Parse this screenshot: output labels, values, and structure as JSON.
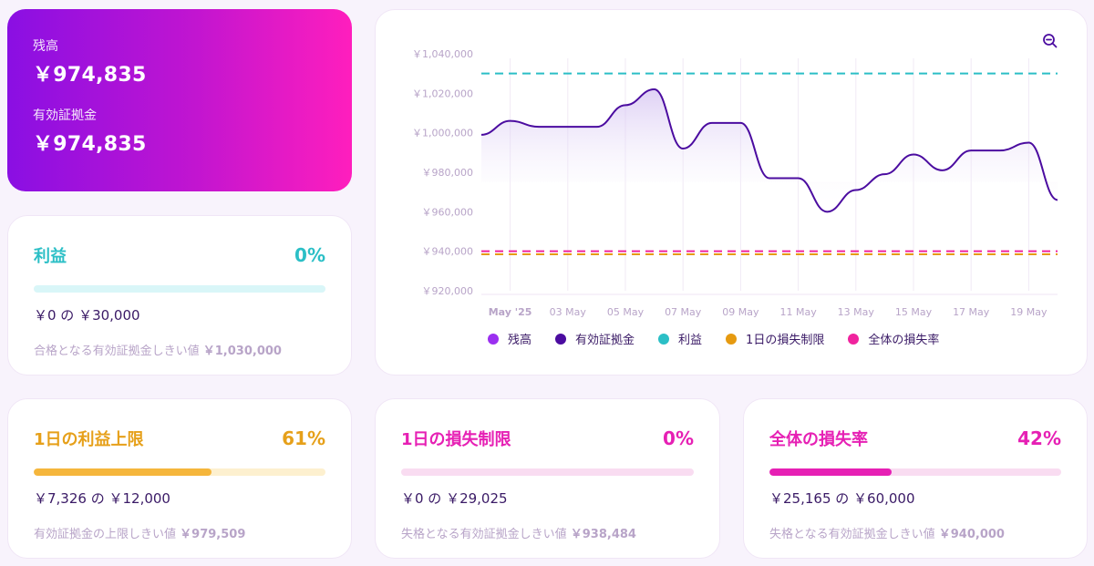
{
  "balance": {
    "balance_label": "残高",
    "balance_value": "￥974,835",
    "equity_label": "有効証拠金",
    "equity_value": "￥974,835"
  },
  "profit": {
    "title": "利益",
    "percent": "0%",
    "progress": 0,
    "amount": "￥0 の ￥30,000",
    "note_label": "合格となる有効証拠金しきい値",
    "note_value": "￥1,030,000",
    "color": "#2bbfc6",
    "track_color": "#d9f6f8"
  },
  "daily_profit_cap": {
    "title": "1日の利益上限",
    "percent": "61%",
    "progress": 0.61,
    "amount": "￥7,326 の ￥12,000",
    "note_label": "有効証拠金の上限しきい値",
    "note_value": "￥979,509",
    "color": "#e6a01a",
    "track_color": "#fdf0cf"
  },
  "daily_loss_limit": {
    "title": "1日の損失制限",
    "percent": "0%",
    "progress": 0,
    "amount": "￥0 の ￥29,025",
    "note_label": "失格となる有効証拠金しきい値",
    "note_value": "￥938,484",
    "color": "#e620b4",
    "track_color": "#f9dcf1"
  },
  "overall_loss": {
    "title": "全体の損失率",
    "percent": "42%",
    "progress": 0.42,
    "amount": "￥25,165 の ￥60,000",
    "note_label": "失格となる有効証拠金しきい値",
    "note_value": "￥940,000",
    "color": "#e620b4",
    "track_color": "#f9dcf1"
  },
  "chart": {
    "zoom_icon": "zoom-out-icon",
    "legend": [
      {
        "label": "残高",
        "color": "#9b2ff0"
      },
      {
        "label": "有効証拠金",
        "color": "#4b0ca0"
      },
      {
        "label": "利益",
        "color": "#2bbfc6"
      },
      {
        "label": "1日の損失制限",
        "color": "#e69a10"
      },
      {
        "label": "全体の損失率",
        "color": "#f0239e"
      }
    ]
  },
  "chart_data": {
    "type": "line",
    "ylim": [
      920000,
      1040000
    ],
    "y_ticks": [
      920000,
      940000,
      960000,
      980000,
      1000000,
      1020000,
      1040000
    ],
    "y_tick_labels": [
      "￥920,000",
      "￥940,000",
      "￥960,000",
      "￥980,000",
      "￥1,000,000",
      "￥1,020,000",
      "￥1,040,000"
    ],
    "x_tick_labels": [
      "May '25",
      "03 May",
      "05 May",
      "07 May",
      "09 May",
      "11 May",
      "13 May",
      "15 May",
      "17 May",
      "19 May"
    ],
    "x_range": [
      "2025-04-30",
      "2025-05-20"
    ],
    "grid": true,
    "series": [
      {
        "name": "有効証拠金",
        "color": "#4b0ca0",
        "x": [
          "2025-04-30",
          "2025-05-01",
          "2025-05-02",
          "2025-05-03",
          "2025-05-04",
          "2025-05-05",
          "2025-05-06",
          "2025-05-07",
          "2025-05-08",
          "2025-05-09",
          "2025-05-10",
          "2025-05-11",
          "2025-05-12",
          "2025-05-13",
          "2025-05-14",
          "2025-05-15",
          "2025-05-16",
          "2025-05-17",
          "2025-05-18",
          "2025-05-19",
          "2025-05-20"
        ],
        "values": [
          999000,
          1006000,
          1003000,
          1003000,
          1003000,
          1014000,
          1022000,
          992000,
          1005000,
          1005000,
          977000,
          977000,
          960000,
          971000,
          979000,
          989000,
          981000,
          991000,
          991000,
          995000,
          966000
        ]
      },
      {
        "name": "利益",
        "color": "#2bbfc6",
        "dashed": true,
        "constant": 1030000
      },
      {
        "name": "1日の損失制限",
        "color": "#e69a10",
        "dashed": true,
        "constant": 938484
      },
      {
        "name": "全体の損失率",
        "color": "#f0239e",
        "dashed": true,
        "constant": 940000
      }
    ]
  }
}
